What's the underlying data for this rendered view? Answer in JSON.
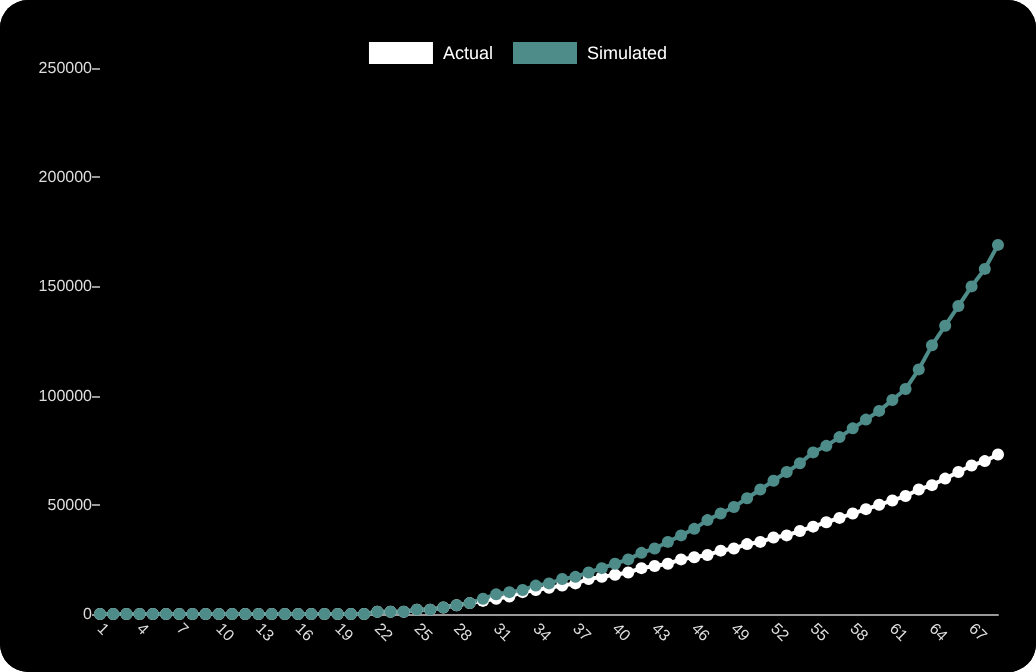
{
  "chart_data": {
    "type": "line",
    "categories": [
      "1",
      null,
      null,
      "4",
      null,
      null,
      "7",
      null,
      null,
      "10",
      null,
      null,
      "13",
      null,
      null,
      "16",
      null,
      null,
      "19",
      null,
      null,
      "22",
      null,
      null,
      "25",
      null,
      null,
      "28",
      null,
      null,
      "31",
      null,
      null,
      "34",
      null,
      null,
      "37",
      null,
      null,
      "40",
      null,
      null,
      "43",
      null,
      null,
      "46",
      null,
      null,
      "49",
      null,
      null,
      "52",
      null,
      null,
      "55",
      null,
      null,
      "58",
      null,
      null,
      "61",
      null,
      null,
      "64",
      null,
      null,
      "67",
      null,
      null
    ],
    "series": [
      {
        "name": "Actual",
        "color": "#ffffff",
        "values": [
          0,
          0,
          0,
          0,
          0,
          0,
          0,
          0,
          0,
          0,
          0,
          0,
          0,
          0,
          0,
          0,
          0,
          0,
          0,
          0,
          0,
          1000,
          1000,
          1000,
          2000,
          2000,
          3000,
          4000,
          5000,
          6000,
          7000,
          8000,
          10000,
          11000,
          12000,
          13000,
          14000,
          16000,
          17000,
          18000,
          19000,
          21000,
          22000,
          23000,
          25000,
          26000,
          27000,
          29000,
          30000,
          32000,
          33000,
          35000,
          36000,
          38000,
          40000,
          42000,
          44000,
          46000,
          48000,
          50000,
          52000,
          54000,
          57000,
          59000,
          62000,
          65000,
          68000,
          70000,
          73000
        ]
      },
      {
        "name": "Simulated",
        "color": "#4e8c8a",
        "values": [
          0,
          0,
          0,
          0,
          0,
          0,
          0,
          0,
          0,
          0,
          0,
          0,
          0,
          0,
          0,
          0,
          0,
          0,
          0,
          0,
          0,
          1000,
          1000,
          1000,
          2000,
          2000,
          3000,
          4000,
          5000,
          7000,
          9000,
          10000,
          11000,
          13000,
          14000,
          16000,
          17000,
          19000,
          21000,
          23000,
          25000,
          28000,
          30000,
          33000,
          36000,
          39000,
          43000,
          46000,
          49000,
          53000,
          57000,
          61000,
          65000,
          69000,
          74000,
          77000,
          81000,
          85000,
          89000,
          93000,
          98000,
          103000,
          112000,
          123000,
          132000,
          141000,
          150000,
          158000,
          169000
        ]
      }
    ],
    "ylim": [
      0,
      250000
    ],
    "yticks": [
      0,
      50000,
      100000,
      150000,
      200000,
      250000
    ],
    "grid": false,
    "legend": "top",
    "marker": "circle"
  }
}
